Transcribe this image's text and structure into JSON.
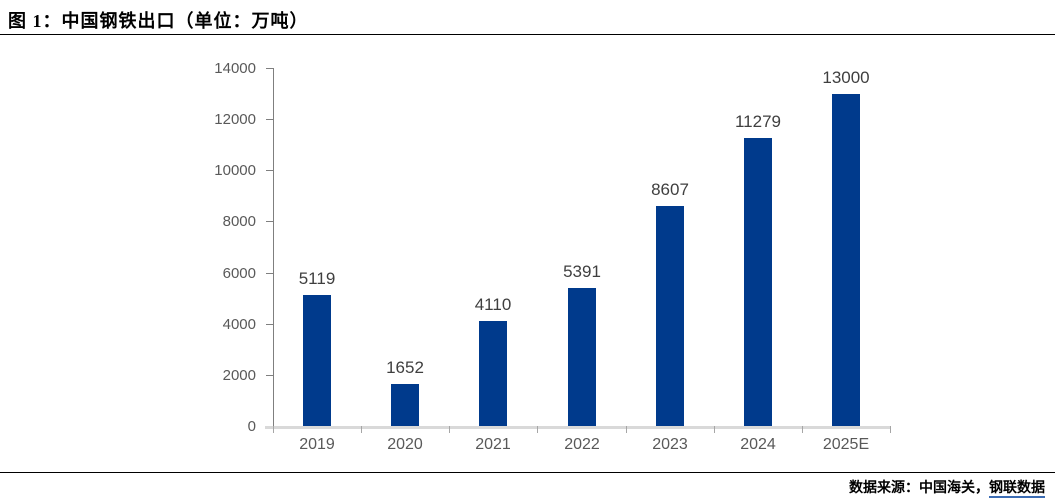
{
  "header": {
    "title": "图 1：中国钢铁出口（单位：万吨）"
  },
  "footer": {
    "source_prefix": "数据来源：中国海关，",
    "source_link": "钢联数据"
  },
  "chart_data": {
    "type": "bar",
    "title": "图 1：中国钢铁出口（单位：万吨）",
    "unit": "万吨",
    "categories": [
      "2019",
      "2020",
      "2021",
      "2022",
      "2023",
      "2024",
      "2025E"
    ],
    "values": [
      5119,
      1652,
      4110,
      5391,
      8607,
      11279,
      13000
    ],
    "data_labels_shown": true,
    "xlabel": "",
    "ylabel": "",
    "ylim": [
      0,
      14000
    ],
    "ytick_step": 2000,
    "ytick_labels": [
      "0",
      "2000",
      "4000",
      "6000",
      "8000",
      "10000",
      "12000",
      "14000"
    ],
    "grid": false,
    "legend": false,
    "bar_color": "#003a8c",
    "value_label_color": "#3f3f3f",
    "axis_line_color": "#7f7f7f",
    "baseline_color": "#d9d9d9",
    "tick_label_color": "#595959"
  }
}
